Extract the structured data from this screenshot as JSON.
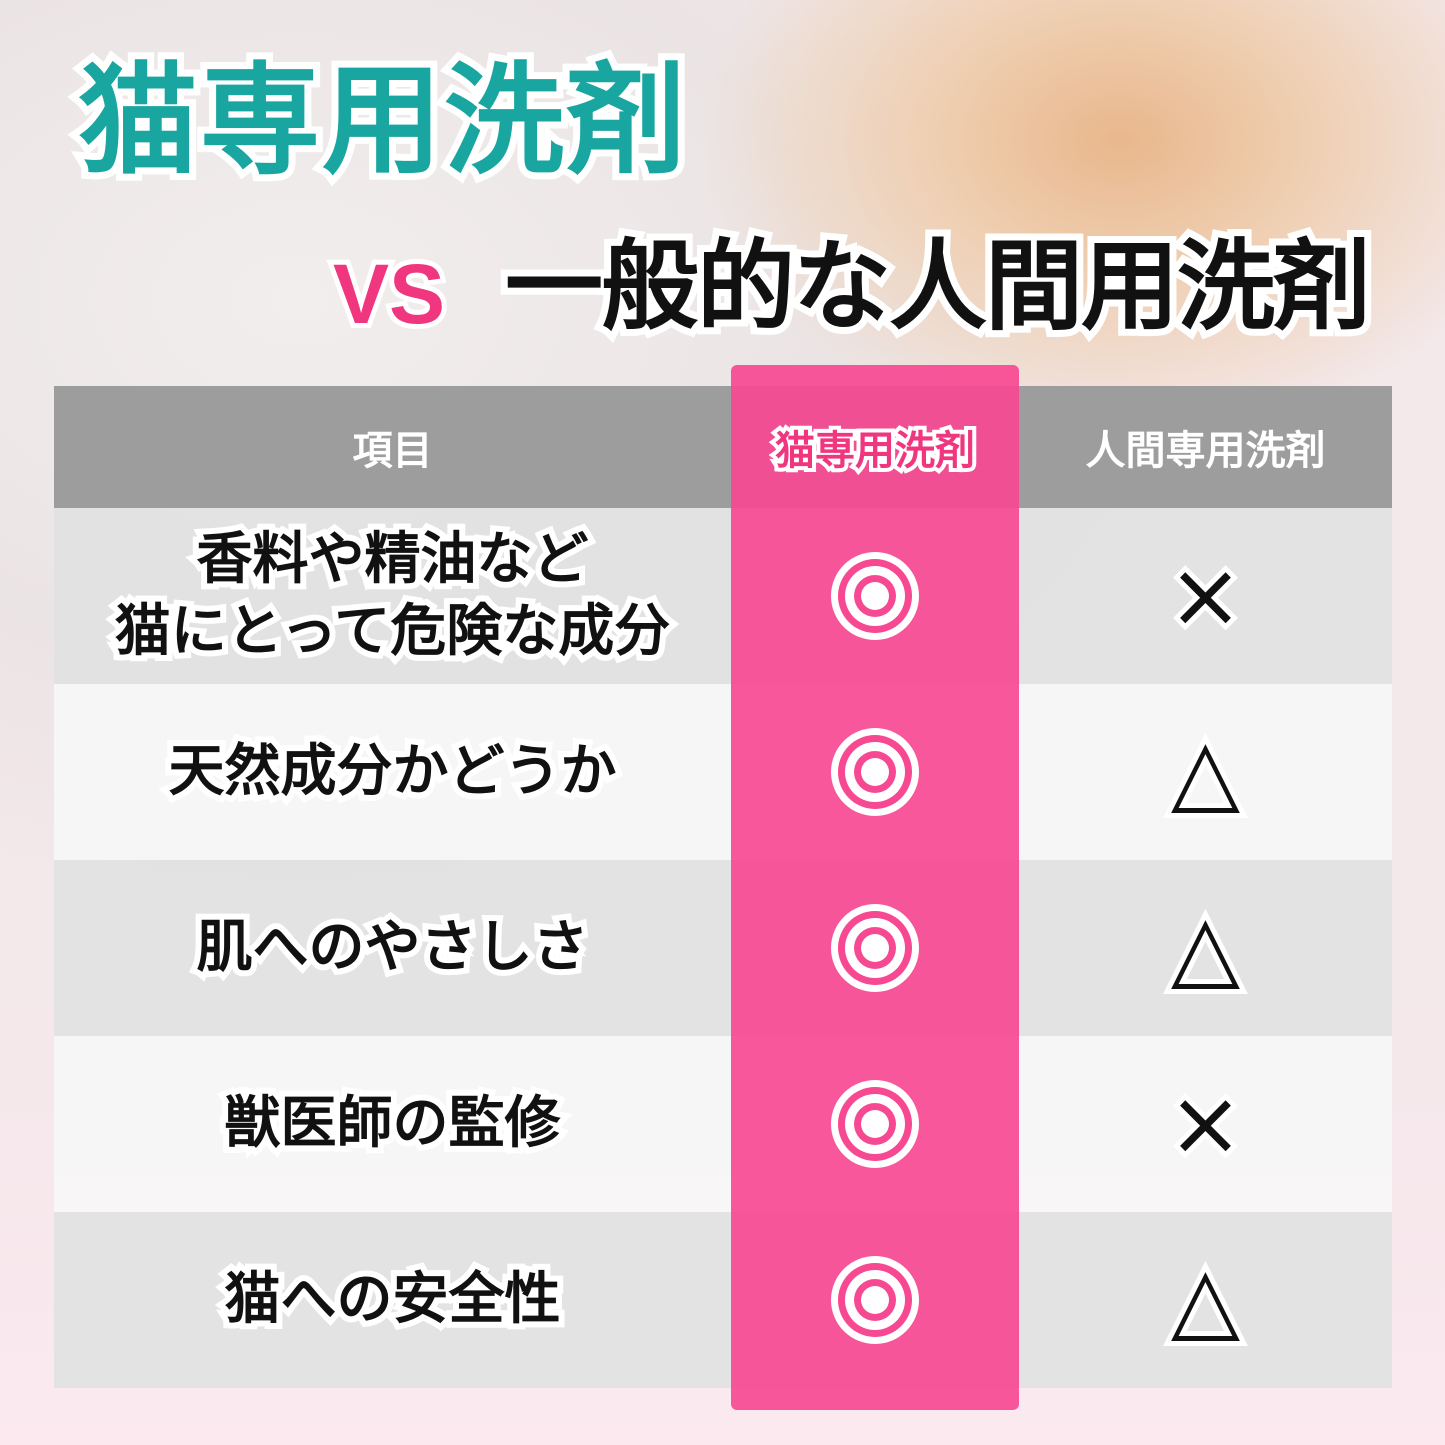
{
  "title": "猫専用洗剤",
  "vs": "VS",
  "subtitle": "一般的な人間用洗剤",
  "colors": {
    "accent_teal": "#1aa6a0",
    "accent_pink": "#f0367f",
    "column_pink": "#f74992",
    "header_gray": "#9d9d9d"
  },
  "table": {
    "headers": [
      "項目",
      "猫専用洗剤",
      "人間専用洗剤"
    ],
    "rows": [
      {
        "item": "香料や精油など\n猫にとって危険な成分",
        "cat": "double-circle",
        "human": "×"
      },
      {
        "item": "天然成分かどうか",
        "cat": "double-circle",
        "human": "△"
      },
      {
        "item": "肌へのやさしさ",
        "cat": "double-circle",
        "human": "△"
      },
      {
        "item": "獣医師の監修",
        "cat": "double-circle",
        "human": "×"
      },
      {
        "item": "猫への安全性",
        "cat": "double-circle",
        "human": "△"
      }
    ]
  }
}
